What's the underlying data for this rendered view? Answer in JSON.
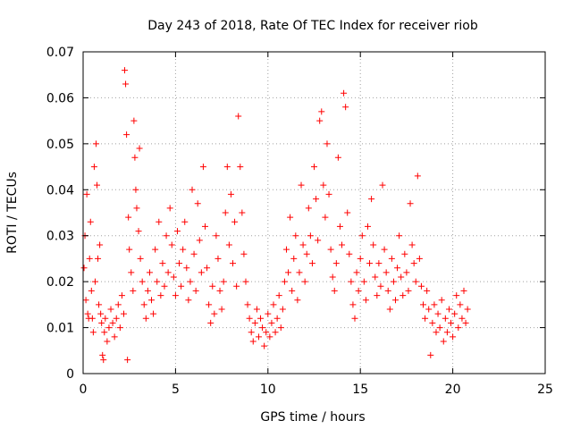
{
  "chart_data": {
    "type": "scatter",
    "title": "Day 243 of 2018, Rate Of TEC Index for receiver riob",
    "xlabel": "GPS time / hours",
    "ylabel": "ROTI / TECUs",
    "xlim": [
      0,
      25
    ],
    "ylim": [
      0,
      0.07
    ],
    "x_ticks": [
      "0",
      "5",
      "10",
      "15",
      "20",
      "25"
    ],
    "y_ticks": [
      "0",
      "0.01",
      "0.02",
      "0.03",
      "0.04",
      "0.05",
      "0.06",
      "0.07"
    ],
    "grid": true,
    "marker": "+",
    "color": "#ff0000",
    "series": [
      {
        "points": [
          [
            0.05,
            0.023
          ],
          [
            0.1,
            0.03
          ],
          [
            0.15,
            0.016
          ],
          [
            0.2,
            0.039
          ],
          [
            0.25,
            0.013
          ],
          [
            0.3,
            0.012
          ],
          [
            0.35,
            0.025
          ],
          [
            0.4,
            0.033
          ],
          [
            0.45,
            0.018
          ],
          [
            0.5,
            0.012
          ],
          [
            0.55,
            0.009
          ],
          [
            0.6,
            0.045
          ],
          [
            0.65,
            0.02
          ],
          [
            0.7,
            0.05
          ],
          [
            0.75,
            0.041
          ],
          [
            0.8,
            0.025
          ],
          [
            0.85,
            0.015
          ],
          [
            0.9,
            0.028
          ],
          [
            0.95,
            0.013
          ],
          [
            1.0,
            0.011
          ],
          [
            1.05,
            0.004
          ],
          [
            1.1,
            0.003
          ],
          [
            1.15,
            0.009
          ],
          [
            1.2,
            0.012
          ],
          [
            1.3,
            0.007
          ],
          [
            1.4,
            0.01
          ],
          [
            1.5,
            0.014
          ],
          [
            1.6,
            0.011
          ],
          [
            1.7,
            0.008
          ],
          [
            1.8,
            0.012
          ],
          [
            1.9,
            0.015
          ],
          [
            2.0,
            0.01
          ],
          [
            2.1,
            0.017
          ],
          [
            2.2,
            0.013
          ],
          [
            2.25,
            0.066
          ],
          [
            2.3,
            0.063
          ],
          [
            2.35,
            0.052
          ],
          [
            2.4,
            0.003
          ],
          [
            2.45,
            0.034
          ],
          [
            2.5,
            0.027
          ],
          [
            2.6,
            0.022
          ],
          [
            2.7,
            0.018
          ],
          [
            2.75,
            0.055
          ],
          [
            2.8,
            0.047
          ],
          [
            2.85,
            0.04
          ],
          [
            2.9,
            0.036
          ],
          [
            3.0,
            0.031
          ],
          [
            3.05,
            0.049
          ],
          [
            3.1,
            0.025
          ],
          [
            3.2,
            0.02
          ],
          [
            3.3,
            0.015
          ],
          [
            3.4,
            0.012
          ],
          [
            3.5,
            0.018
          ],
          [
            3.6,
            0.022
          ],
          [
            3.7,
            0.016
          ],
          [
            3.8,
            0.013
          ],
          [
            3.9,
            0.027
          ],
          [
            4.0,
            0.02
          ],
          [
            4.1,
            0.033
          ],
          [
            4.2,
            0.017
          ],
          [
            4.3,
            0.024
          ],
          [
            4.4,
            0.019
          ],
          [
            4.5,
            0.03
          ],
          [
            4.6,
            0.022
          ],
          [
            4.7,
            0.036
          ],
          [
            4.8,
            0.028
          ],
          [
            4.9,
            0.021
          ],
          [
            5.0,
            0.017
          ],
          [
            5.1,
            0.031
          ],
          [
            5.2,
            0.024
          ],
          [
            5.3,
            0.019
          ],
          [
            5.4,
            0.027
          ],
          [
            5.5,
            0.033
          ],
          [
            5.6,
            0.023
          ],
          [
            5.7,
            0.016
          ],
          [
            5.8,
            0.02
          ],
          [
            5.9,
            0.04
          ],
          [
            6.0,
            0.026
          ],
          [
            6.1,
            0.018
          ],
          [
            6.2,
            0.037
          ],
          [
            6.3,
            0.029
          ],
          [
            6.4,
            0.022
          ],
          [
            6.5,
            0.045
          ],
          [
            6.6,
            0.032
          ],
          [
            6.7,
            0.023
          ],
          [
            6.8,
            0.015
          ],
          [
            6.9,
            0.011
          ],
          [
            7.0,
            0.019
          ],
          [
            7.1,
            0.013
          ],
          [
            7.2,
            0.03
          ],
          [
            7.3,
            0.025
          ],
          [
            7.4,
            0.018
          ],
          [
            7.5,
            0.014
          ],
          [
            7.6,
            0.02
          ],
          [
            7.7,
            0.035
          ],
          [
            7.8,
            0.045
          ],
          [
            7.9,
            0.028
          ],
          [
            8.0,
            0.039
          ],
          [
            8.1,
            0.024
          ],
          [
            8.2,
            0.033
          ],
          [
            8.3,
            0.019
          ],
          [
            8.4,
            0.056
          ],
          [
            8.5,
            0.045
          ],
          [
            8.6,
            0.035
          ],
          [
            8.7,
            0.026
          ],
          [
            8.8,
            0.02
          ],
          [
            8.9,
            0.015
          ],
          [
            9.0,
            0.012
          ],
          [
            9.1,
            0.009
          ],
          [
            9.2,
            0.007
          ],
          [
            9.3,
            0.011
          ],
          [
            9.4,
            0.014
          ],
          [
            9.5,
            0.008
          ],
          [
            9.6,
            0.012
          ],
          [
            9.7,
            0.01
          ],
          [
            9.8,
            0.006
          ],
          [
            9.9,
            0.009
          ],
          [
            10.0,
            0.013
          ],
          [
            10.1,
            0.008
          ],
          [
            10.2,
            0.011
          ],
          [
            10.3,
            0.015
          ],
          [
            10.4,
            0.009
          ],
          [
            10.5,
            0.012
          ],
          [
            10.6,
            0.017
          ],
          [
            10.7,
            0.01
          ],
          [
            10.8,
            0.014
          ],
          [
            10.9,
            0.02
          ],
          [
            11.0,
            0.027
          ],
          [
            11.1,
            0.022
          ],
          [
            11.2,
            0.034
          ],
          [
            11.3,
            0.018
          ],
          [
            11.4,
            0.025
          ],
          [
            11.5,
            0.03
          ],
          [
            11.6,
            0.016
          ],
          [
            11.7,
            0.022
          ],
          [
            11.8,
            0.041
          ],
          [
            11.9,
            0.028
          ],
          [
            12.0,
            0.02
          ],
          [
            12.1,
            0.026
          ],
          [
            12.2,
            0.036
          ],
          [
            12.3,
            0.03
          ],
          [
            12.4,
            0.024
          ],
          [
            12.5,
            0.045
          ],
          [
            12.6,
            0.038
          ],
          [
            12.7,
            0.029
          ],
          [
            12.8,
            0.055
          ],
          [
            12.9,
            0.057
          ],
          [
            13.0,
            0.041
          ],
          [
            13.1,
            0.034
          ],
          [
            13.2,
            0.05
          ],
          [
            13.3,
            0.039
          ],
          [
            13.4,
            0.027
          ],
          [
            13.5,
            0.021
          ],
          [
            13.6,
            0.018
          ],
          [
            13.7,
            0.024
          ],
          [
            13.8,
            0.047
          ],
          [
            13.9,
            0.032
          ],
          [
            14.0,
            0.028
          ],
          [
            14.1,
            0.061
          ],
          [
            14.2,
            0.058
          ],
          [
            14.3,
            0.035
          ],
          [
            14.4,
            0.026
          ],
          [
            14.5,
            0.02
          ],
          [
            14.6,
            0.015
          ],
          [
            14.7,
            0.012
          ],
          [
            14.8,
            0.022
          ],
          [
            14.9,
            0.018
          ],
          [
            15.0,
            0.025
          ],
          [
            15.1,
            0.03
          ],
          [
            15.2,
            0.02
          ],
          [
            15.3,
            0.016
          ],
          [
            15.4,
            0.032
          ],
          [
            15.5,
            0.024
          ],
          [
            15.6,
            0.038
          ],
          [
            15.7,
            0.028
          ],
          [
            15.8,
            0.021
          ],
          [
            15.9,
            0.017
          ],
          [
            16.0,
            0.024
          ],
          [
            16.1,
            0.019
          ],
          [
            16.2,
            0.041
          ],
          [
            16.3,
            0.027
          ],
          [
            16.4,
            0.022
          ],
          [
            16.5,
            0.018
          ],
          [
            16.6,
            0.014
          ],
          [
            16.7,
            0.025
          ],
          [
            16.8,
            0.02
          ],
          [
            16.9,
            0.016
          ],
          [
            17.0,
            0.023
          ],
          [
            17.1,
            0.03
          ],
          [
            17.2,
            0.021
          ],
          [
            17.3,
            0.017
          ],
          [
            17.4,
            0.026
          ],
          [
            17.5,
            0.022
          ],
          [
            17.6,
            0.018
          ],
          [
            17.7,
            0.037
          ],
          [
            17.8,
            0.028
          ],
          [
            17.9,
            0.024
          ],
          [
            18.0,
            0.02
          ],
          [
            18.1,
            0.043
          ],
          [
            18.2,
            0.025
          ],
          [
            18.3,
            0.019
          ],
          [
            18.4,
            0.015
          ],
          [
            18.5,
            0.012
          ],
          [
            18.6,
            0.018
          ],
          [
            18.7,
            0.014
          ],
          [
            18.8,
            0.004
          ],
          [
            18.9,
            0.011
          ],
          [
            19.0,
            0.015
          ],
          [
            19.1,
            0.009
          ],
          [
            19.2,
            0.013
          ],
          [
            19.3,
            0.01
          ],
          [
            19.4,
            0.016
          ],
          [
            19.5,
            0.007
          ],
          [
            19.6,
            0.012
          ],
          [
            19.7,
            0.009
          ],
          [
            19.8,
            0.014
          ],
          [
            19.9,
            0.011
          ],
          [
            20.0,
            0.008
          ],
          [
            20.1,
            0.013
          ],
          [
            20.2,
            0.017
          ],
          [
            20.3,
            0.01
          ],
          [
            20.4,
            0.015
          ],
          [
            20.5,
            0.012
          ],
          [
            20.6,
            0.018
          ],
          [
            20.7,
            0.011
          ],
          [
            20.8,
            0.014
          ]
        ]
      }
    ]
  }
}
